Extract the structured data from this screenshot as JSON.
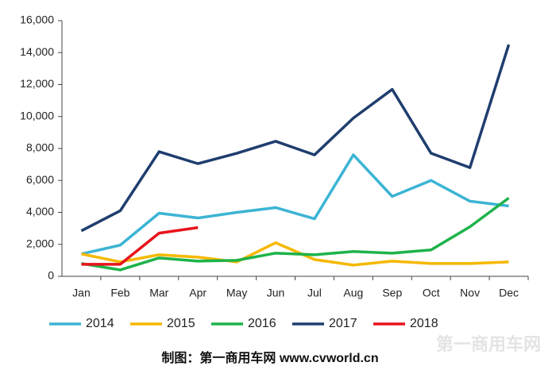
{
  "chart_data": {
    "type": "line",
    "categories": [
      "Jan",
      "Feb",
      "Mar",
      "Apr",
      "May",
      "Jun",
      "Jul",
      "Aug",
      "Sep",
      "Oct",
      "Nov",
      "Dec"
    ],
    "series": [
      {
        "name": "2014",
        "color": "#3cb4d4",
        "values": [
          1400,
          1950,
          3950,
          3650,
          4000,
          4300,
          3600,
          7600,
          5000,
          6000,
          4700,
          4400
        ]
      },
      {
        "name": "2015",
        "color": "#f5b800",
        "values": [
          1400,
          900,
          1350,
          1200,
          900,
          2100,
          1050,
          700,
          950,
          800,
          800,
          900
        ]
      },
      {
        "name": "2016",
        "color": "#1db34a",
        "values": [
          800,
          400,
          1150,
          950,
          1000,
          1450,
          1350,
          1550,
          1450,
          1650,
          3100,
          4900
        ]
      },
      {
        "name": "2017",
        "color": "#1f3e6e",
        "values": [
          2850,
          4100,
          7800,
          7050,
          7700,
          8450,
          7600,
          9900,
          11700,
          7700,
          6800,
          14500
        ]
      },
      {
        "name": "2018",
        "color": "#e8141b",
        "values": [
          750,
          750,
          2700,
          3050,
          null,
          null,
          null,
          null,
          null,
          null,
          null,
          null
        ]
      }
    ],
    "ylim": [
      0,
      16000
    ],
    "yticks": [
      0,
      {
        "value": 2000,
        "label": "2,000"
      },
      {
        "value": 4000,
        "label": "4,000"
      },
      {
        "value": 6000,
        "label": "6,000"
      },
      {
        "value": 8000,
        "label": "8,000"
      },
      {
        "value": 10000,
        "label": "10,000"
      },
      {
        "value": 12000,
        "label": "12,000"
      },
      {
        "value": 14000,
        "label": "14,000"
      },
      {
        "value": 16000,
        "label": "16,000"
      }
    ],
    "legend": "bottom",
    "source": "制图：第一商用车网 www.cvworld.cn",
    "watermark": "第一商用车网"
  }
}
